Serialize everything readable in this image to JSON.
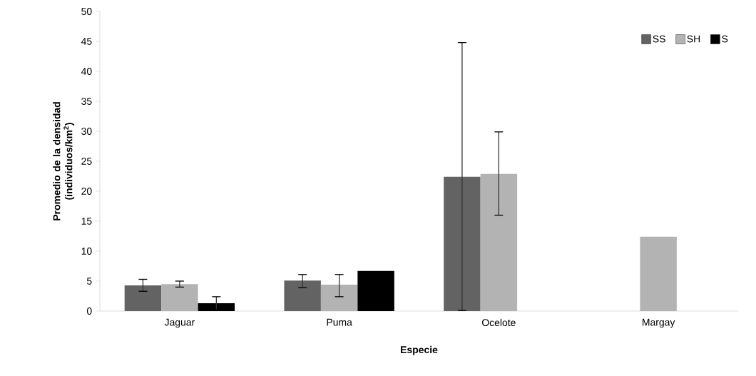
{
  "chart_data": {
    "type": "bar",
    "xlabel": "Especie",
    "ylabel": "Promedio de la densidad (individuos/km$^{2}$)",
    "categories": [
      "Jaguar",
      "Puma",
      "Ocelote",
      "Margay"
    ],
    "series": [
      {
        "name": "SS",
        "color": "#636363",
        "values": [
          4.3,
          5.1,
          22.4,
          null
        ],
        "errors": [
          [
            3.3,
            5.3
          ],
          [
            3.9,
            6.1
          ],
          [
            0.1,
            44.8
          ],
          null
        ]
      },
      {
        "name": "SH",
        "color": "#b3b3b3",
        "values": [
          4.5,
          4.4,
          22.9,
          12.4
        ],
        "errors": [
          [
            4.0,
            5.0
          ],
          [
            2.4,
            6.1
          ],
          [
            16.0,
            29.9
          ],
          null
        ]
      },
      {
        "name": "S",
        "color": "#000000",
        "values": [
          1.3,
          6.7,
          null,
          null
        ],
        "errors": [
          [
            0.2,
            2.4
          ],
          null,
          null,
          null
        ]
      }
    ],
    "ylim": [
      0,
      50
    ],
    "yticks": [
      0,
      5,
      10,
      15,
      20,
      25,
      30,
      35,
      40,
      45,
      50
    ],
    "legend": "top right",
    "grid": false
  }
}
